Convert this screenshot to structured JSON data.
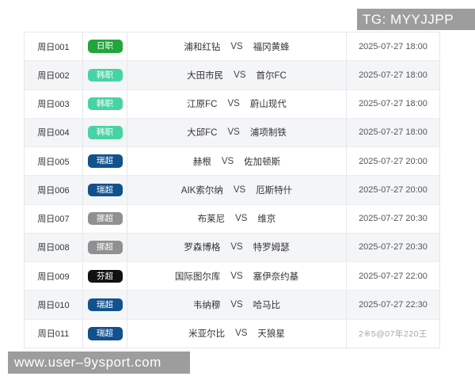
{
  "overlays": {
    "telegram_badge": "TG: MYYJJPP",
    "site_badge": "www.user–9ysport.com"
  },
  "colors": {
    "badge_jleague_green": "#23a53c",
    "badge_kleague_mint": "#47d4a4",
    "badge_allsvenskan_navy": "#11518e",
    "badge_eliteserien_gray": "#909090",
    "badge_veikkausliiga_black": "#111111",
    "overlay_bar_gray": "#9d9d9d",
    "row_alt_background": "#f4f5f7"
  },
  "table": {
    "rows": [
      {
        "code": "周日001",
        "league": "日职",
        "league_color": "#23a53c",
        "home": "浦和红钻",
        "vs": "VS",
        "away": "福冈黄蜂",
        "time": "2025-07-27 18:00",
        "obscured": false
      },
      {
        "code": "周日002",
        "league": "韩职",
        "league_color": "#47d4a4",
        "home": "大田市民",
        "vs": "VS",
        "away": "首尔FC",
        "time": "2025-07-27 18:00",
        "obscured": false
      },
      {
        "code": "周日003",
        "league": "韩职",
        "league_color": "#47d4a4",
        "home": "江原FC",
        "vs": "VS",
        "away": "蔚山现代",
        "time": "2025-07-27 18:00",
        "obscured": false
      },
      {
        "code": "周日004",
        "league": "韩职",
        "league_color": "#47d4a4",
        "home": "大邱FC",
        "vs": "VS",
        "away": "浦项制铁",
        "time": "2025-07-27 18:00",
        "obscured": false
      },
      {
        "code": "周日005",
        "league": "瑞超",
        "league_color": "#11518e",
        "home": "赫根",
        "vs": "VS",
        "away": "佐加顿斯",
        "time": "2025-07-27 20:00",
        "obscured": false
      },
      {
        "code": "周日006",
        "league": "瑞超",
        "league_color": "#11518e",
        "home": "AIK索尔纳",
        "vs": "VS",
        "away": "厄斯特什",
        "time": "2025-07-27 20:00",
        "obscured": false
      },
      {
        "code": "周日007",
        "league": "挪超",
        "league_color": "#909090",
        "home": "布莱尼",
        "vs": "VS",
        "away": "维京",
        "time": "2025-07-27 20:30",
        "obscured": false
      },
      {
        "code": "周日008",
        "league": "挪超",
        "league_color": "#909090",
        "home": "罗森博格",
        "vs": "VS",
        "away": "特罗姆瑟",
        "time": "2025-07-27 20:30",
        "obscured": false
      },
      {
        "code": "周日009",
        "league": "芬超",
        "league_color": "#111111",
        "home": "国际图尔库",
        "vs": "VS",
        "away": "塞伊奈约基",
        "time": "2025-07-27 22:00",
        "obscured": false
      },
      {
        "code": "周日010",
        "league": "瑞超",
        "league_color": "#11518e",
        "home": "韦纳穆",
        "vs": "VS",
        "away": "哈马比",
        "time": "2025-07-27 22:30",
        "obscured": false
      },
      {
        "code": "周日011",
        "league": "瑞超",
        "league_color": "#11518e",
        "home": "米亚尔比",
        "vs": "VS",
        "away": "天狼星",
        "time": "2※5@07年220王",
        "obscured": true
      }
    ]
  }
}
